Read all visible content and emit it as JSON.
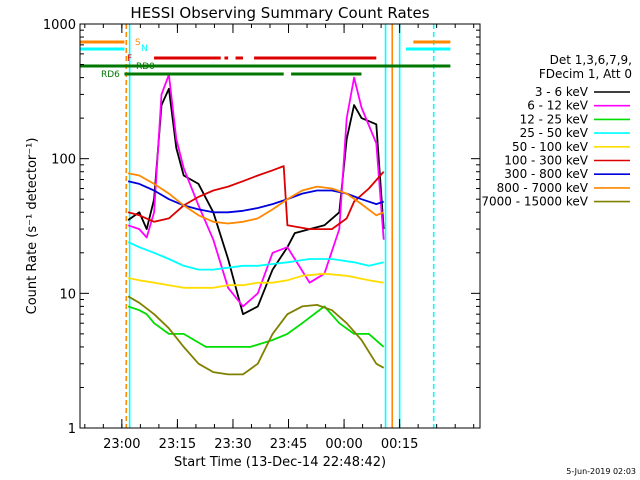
{
  "chart_data": {
    "type": "line",
    "title": "HESSI Observing Summary Count Rates",
    "xlabel": "Start Time (13-Dec-14 22:48:42)",
    "ylabel": "Count Rate (s⁻¹ detector⁻¹)",
    "yscale": "log",
    "ylim": [
      1,
      1000
    ],
    "xlim_minutes": [
      0,
      108
    ],
    "x_ticks": [
      {
        "label": "23:00",
        "t": 11.3
      },
      {
        "label": "23:15",
        "t": 26.3
      },
      {
        "label": "23:30",
        "t": 41.3
      },
      {
        "label": "23:45",
        "t": 56.3
      },
      {
        "label": "00:00",
        "t": 71.3
      },
      {
        "label": "00:15",
        "t": 86.3
      }
    ],
    "y_ticks": [
      {
        "label": "1",
        "v": 1
      },
      {
        "label": "10",
        "v": 10
      },
      {
        "label": "100",
        "v": 100
      },
      {
        "label": "1000",
        "v": 1000
      }
    ],
    "legend_header": [
      "Det 1,3,6,7,9,",
      "FDecim 1, Att 0"
    ],
    "legend_position": "right",
    "series": [
      {
        "name": "3 - 6 keV",
        "color": "#000000",
        "points": [
          [
            13,
            35
          ],
          [
            16,
            40
          ],
          [
            18,
            30
          ],
          [
            20,
            50
          ],
          [
            22,
            250
          ],
          [
            24,
            330
          ],
          [
            26,
            120
          ],
          [
            28,
            75
          ],
          [
            32,
            65
          ],
          [
            36,
            40
          ],
          [
            40,
            18
          ],
          [
            44,
            7
          ],
          [
            48,
            8
          ],
          [
            52,
            15
          ],
          [
            56,
            22
          ],
          [
            58,
            28
          ],
          [
            62,
            30
          ],
          [
            66,
            32
          ],
          [
            70,
            40
          ],
          [
            72,
            140
          ],
          [
            74,
            250
          ],
          [
            76,
            200
          ],
          [
            80,
            180
          ],
          [
            82,
            30
          ]
        ]
      },
      {
        "name": "6 - 12 keV",
        "color": "#ff00ff",
        "points": [
          [
            13,
            32
          ],
          [
            16,
            30
          ],
          [
            18,
            26
          ],
          [
            20,
            40
          ],
          [
            22,
            300
          ],
          [
            24,
            420
          ],
          [
            26,
            140
          ],
          [
            28,
            85
          ],
          [
            32,
            45
          ],
          [
            36,
            25
          ],
          [
            40,
            11
          ],
          [
            44,
            8
          ],
          [
            48,
            10
          ],
          [
            52,
            20
          ],
          [
            56,
            22
          ],
          [
            58,
            18
          ],
          [
            62,
            12
          ],
          [
            66,
            14
          ],
          [
            70,
            30
          ],
          [
            72,
            200
          ],
          [
            74,
            400
          ],
          [
            76,
            240
          ],
          [
            80,
            130
          ],
          [
            82,
            25
          ]
        ]
      },
      {
        "name": "12 - 25 keV",
        "color": "#00dd00",
        "points": [
          [
            13,
            8
          ],
          [
            16,
            7.5
          ],
          [
            18,
            7
          ],
          [
            20,
            6
          ],
          [
            24,
            5
          ],
          [
            28,
            5
          ],
          [
            34,
            4
          ],
          [
            40,
            4
          ],
          [
            46,
            4
          ],
          [
            52,
            4.5
          ],
          [
            56,
            5
          ],
          [
            60,
            6
          ],
          [
            66,
            8
          ],
          [
            70,
            6
          ],
          [
            74,
            5
          ],
          [
            78,
            5
          ],
          [
            82,
            4
          ]
        ]
      },
      {
        "name": "25 - 50 keV",
        "color": "#00ffff",
        "points": [
          [
            13,
            24
          ],
          [
            16,
            22
          ],
          [
            20,
            20
          ],
          [
            24,
            18
          ],
          [
            28,
            16
          ],
          [
            32,
            15
          ],
          [
            36,
            15
          ],
          [
            40,
            15.5
          ],
          [
            44,
            16
          ],
          [
            48,
            16
          ],
          [
            52,
            16.5
          ],
          [
            56,
            17
          ],
          [
            62,
            18
          ],
          [
            68,
            18
          ],
          [
            74,
            17
          ],
          [
            78,
            16
          ],
          [
            82,
            17
          ]
        ]
      },
      {
        "name": "50 - 100 keV",
        "color": "#ffdd00",
        "points": [
          [
            13,
            13
          ],
          [
            16,
            12.5
          ],
          [
            20,
            12
          ],
          [
            24,
            11.5
          ],
          [
            28,
            11
          ],
          [
            32,
            11
          ],
          [
            36,
            11
          ],
          [
            40,
            11.5
          ],
          [
            44,
            11.5
          ],
          [
            48,
            12
          ],
          [
            52,
            12
          ],
          [
            56,
            12.5
          ],
          [
            60,
            13.5
          ],
          [
            66,
            14
          ],
          [
            72,
            13.5
          ],
          [
            78,
            12.5
          ],
          [
            82,
            12
          ]
        ]
      },
      {
        "name": "100 - 300 keV",
        "color": "#dd0000",
        "points": [
          [
            13,
            40
          ],
          [
            16,
            38
          ],
          [
            20,
            34
          ],
          [
            24,
            36
          ],
          [
            28,
            45
          ],
          [
            32,
            52
          ],
          [
            36,
            58
          ],
          [
            40,
            62
          ],
          [
            44,
            68
          ],
          [
            48,
            75
          ],
          [
            52,
            82
          ],
          [
            55,
            88
          ],
          [
            56,
            32
          ],
          [
            62,
            30
          ],
          [
            68,
            30
          ],
          [
            72,
            36
          ],
          [
            74,
            48
          ],
          [
            78,
            60
          ],
          [
            82,
            80
          ]
        ]
      },
      {
        "name": "300 - 800 keV",
        "color": "#0000dd",
        "points": [
          [
            13,
            68
          ],
          [
            16,
            65
          ],
          [
            20,
            58
          ],
          [
            24,
            50
          ],
          [
            28,
            45
          ],
          [
            32,
            42
          ],
          [
            36,
            40
          ],
          [
            40,
            40
          ],
          [
            44,
            41
          ],
          [
            48,
            43
          ],
          [
            52,
            46
          ],
          [
            56,
            50
          ],
          [
            60,
            55
          ],
          [
            64,
            58
          ],
          [
            68,
            58
          ],
          [
            72,
            55
          ],
          [
            76,
            50
          ],
          [
            80,
            46
          ],
          [
            82,
            48
          ]
        ]
      },
      {
        "name": "800 - 7000 keV",
        "color": "#ff8800",
        "points": [
          [
            13,
            78
          ],
          [
            16,
            75
          ],
          [
            20,
            65
          ],
          [
            24,
            55
          ],
          [
            28,
            45
          ],
          [
            32,
            38
          ],
          [
            36,
            34
          ],
          [
            40,
            33
          ],
          [
            44,
            34
          ],
          [
            48,
            36
          ],
          [
            52,
            42
          ],
          [
            56,
            50
          ],
          [
            60,
            58
          ],
          [
            64,
            62
          ],
          [
            68,
            60
          ],
          [
            72,
            55
          ],
          [
            76,
            46
          ],
          [
            80,
            38
          ],
          [
            82,
            40
          ]
        ]
      },
      {
        "name": "7000 - 15000 keV",
        "color": "#808000",
        "points": [
          [
            13,
            9.5
          ],
          [
            16,
            8.5
          ],
          [
            20,
            7
          ],
          [
            24,
            5.5
          ],
          [
            28,
            4
          ],
          [
            32,
            3
          ],
          [
            36,
            2.6
          ],
          [
            40,
            2.5
          ],
          [
            44,
            2.5
          ],
          [
            48,
            3
          ],
          [
            52,
            5
          ],
          [
            56,
            7
          ],
          [
            60,
            8
          ],
          [
            64,
            8.2
          ],
          [
            68,
            7.5
          ],
          [
            72,
            6
          ],
          [
            76,
            4.5
          ],
          [
            80,
            3
          ],
          [
            82,
            2.8
          ]
        ]
      }
    ],
    "flag_labels": [
      "S",
      "N",
      "F",
      "RD0",
      "RD6"
    ],
    "flag_bars": [
      {
        "name": "S",
        "color": "#ff8800",
        "segments": [
          [
            0,
            12
          ],
          [
            90,
            100
          ]
        ]
      },
      {
        "name": "N",
        "color": "#00ffff",
        "segments": [
          [
            0,
            12
          ],
          [
            88,
            100
          ]
        ]
      },
      {
        "name": "F",
        "color": "#dd0000",
        "segments": [
          [
            20,
            38
          ],
          [
            39,
            40
          ],
          [
            42,
            44
          ],
          [
            47,
            80
          ]
        ]
      },
      {
        "name": "RD0",
        "color": "#007700",
        "segments": [
          [
            0,
            100
          ]
        ]
      },
      {
        "name": "RD6",
        "color": "#007700",
        "segments": [
          [
            12,
            55
          ],
          [
            57,
            76
          ]
        ]
      }
    ],
    "vertical_markers": [
      {
        "t": 12.5,
        "color": "#ff8800",
        "style": "dashed"
      },
      {
        "t": 13.4,
        "color": "#00ffff",
        "style": "solid"
      },
      {
        "t": 82.5,
        "color": "#00ffff",
        "style": "solid"
      },
      {
        "t": 84.3,
        "color": "#ff8800",
        "style": "solid"
      },
      {
        "t": 86.3,
        "color": "#00ffff",
        "style": "solid"
      },
      {
        "t": 95.5,
        "color": "#00ffff",
        "style": "dashed"
      }
    ]
  },
  "footer": {
    "timestamp": "5-Jun-2019 02:03"
  }
}
